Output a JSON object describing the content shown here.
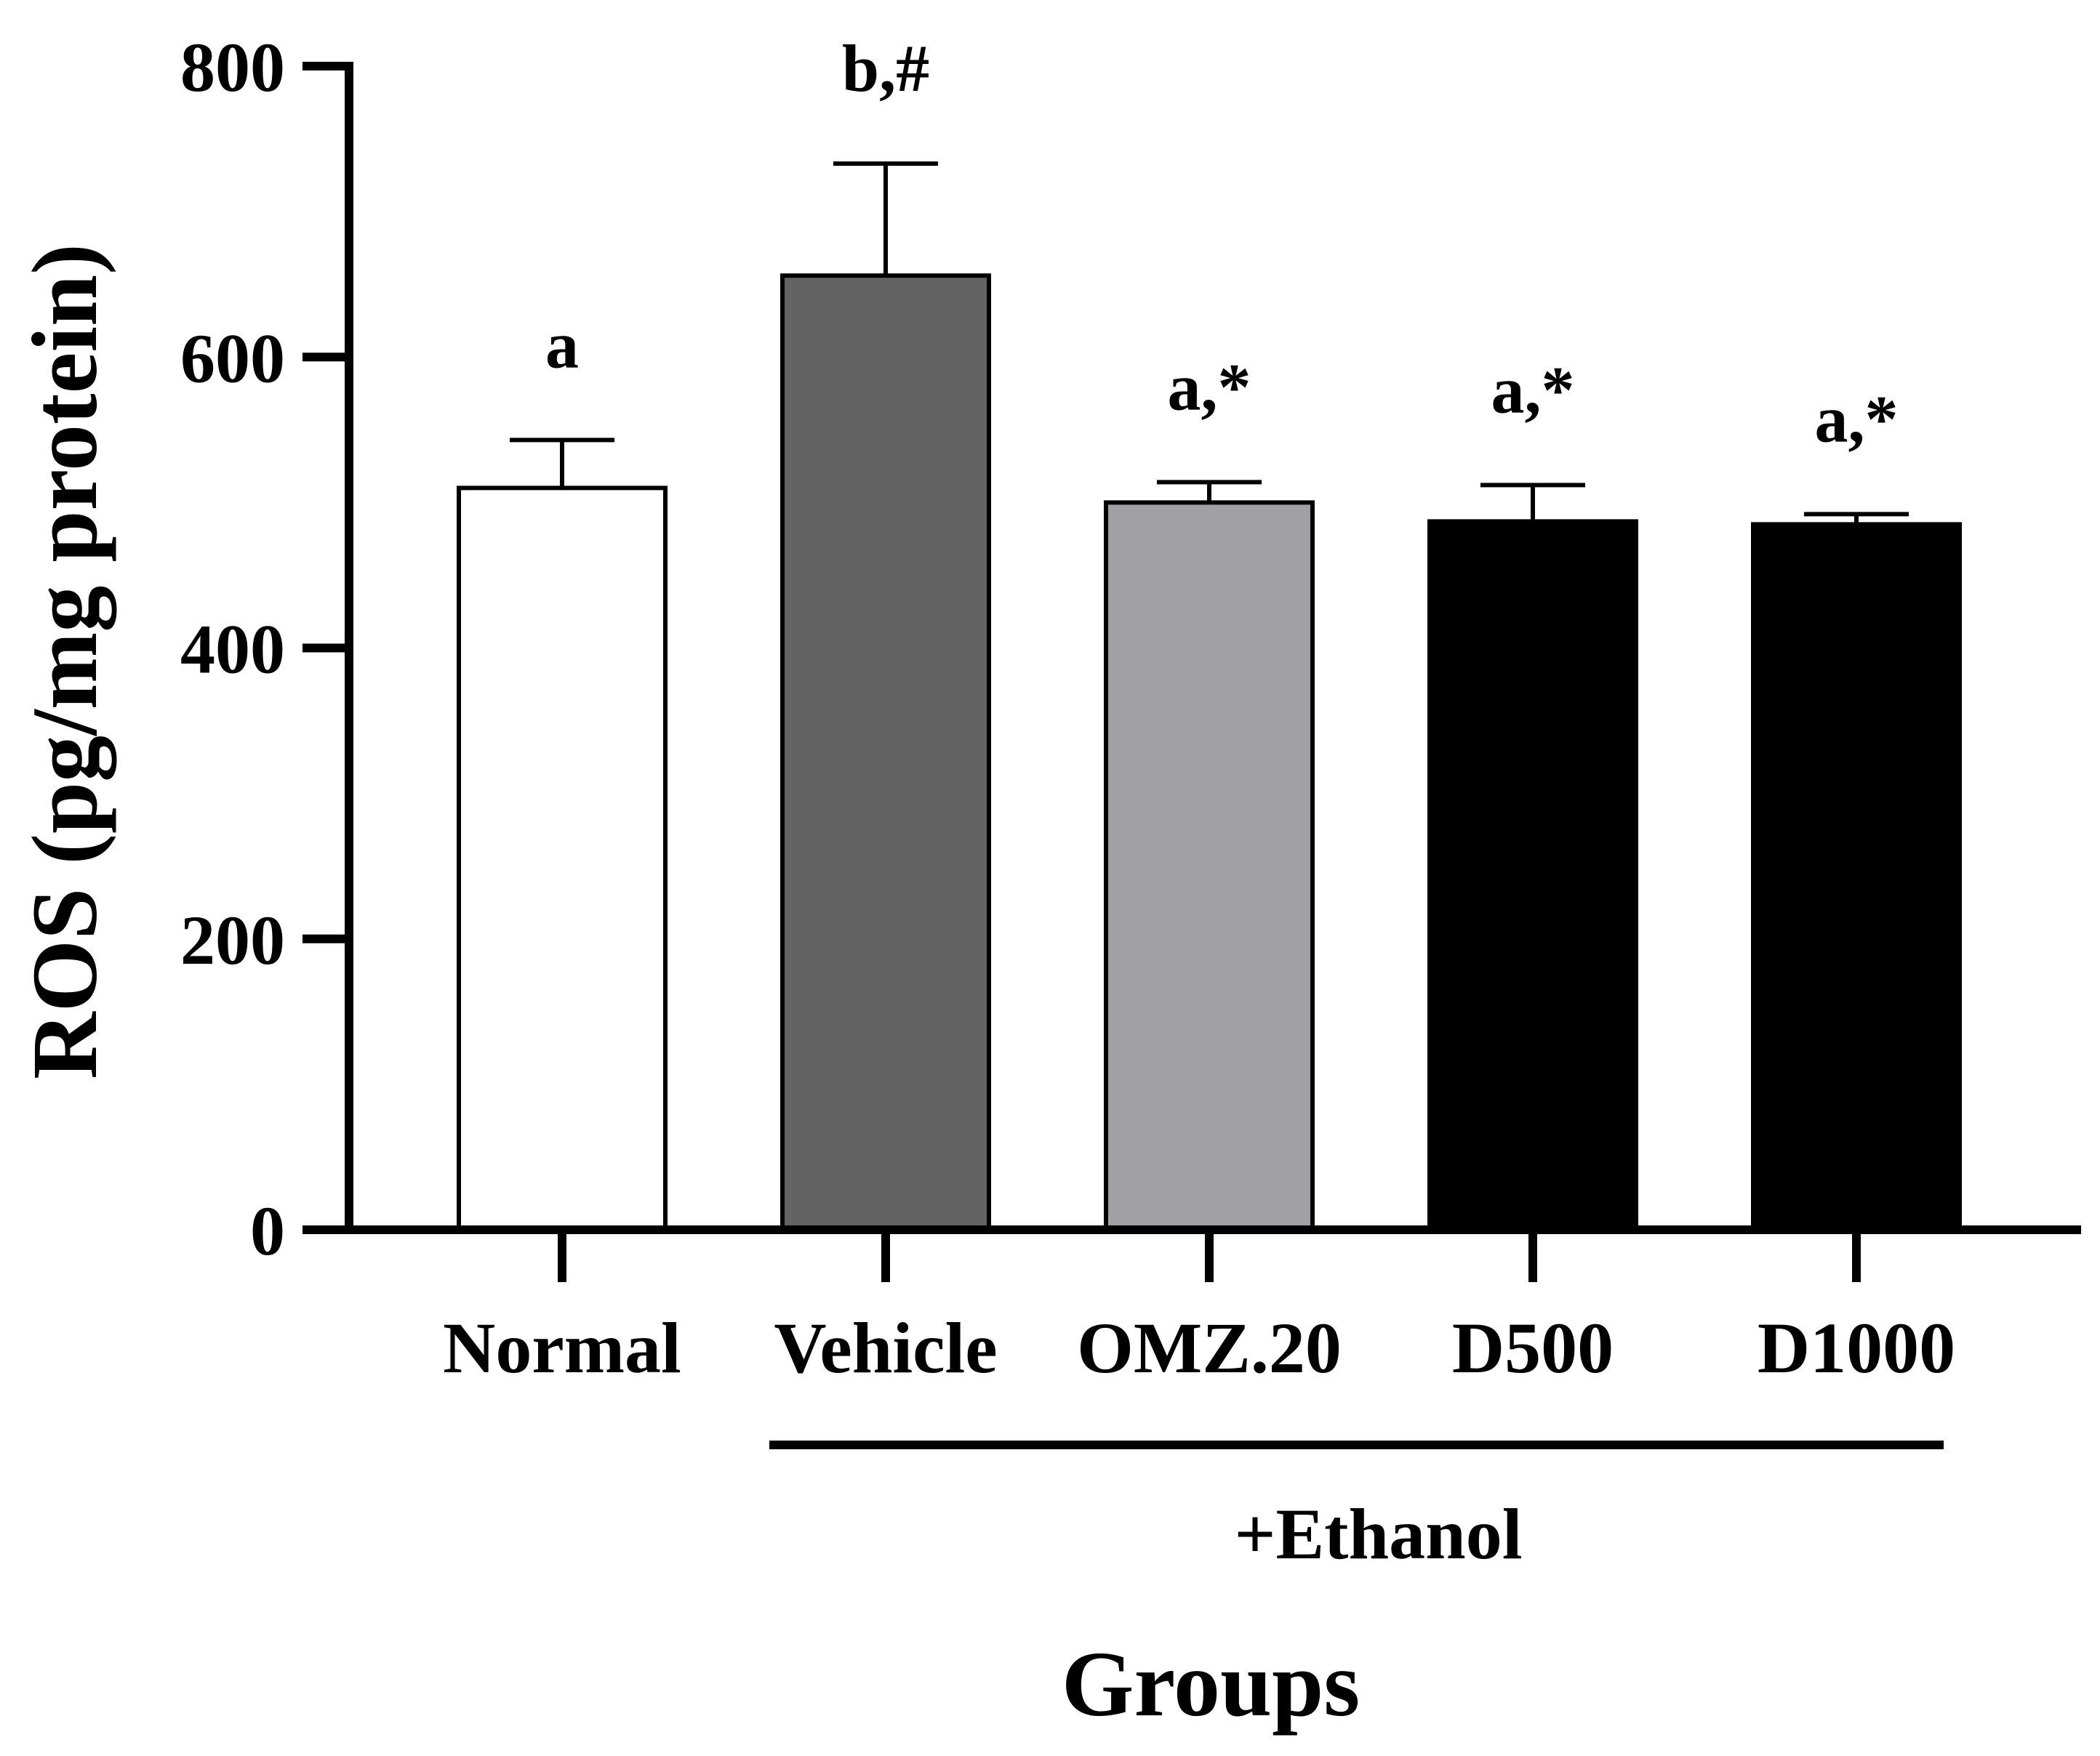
{
  "chart_data": {
    "type": "bar",
    "title": "",
    "xlabel": "Groups",
    "ylabel": "ROS (pg/mg protein)",
    "ylim": [
      0,
      800
    ],
    "yticks": [
      0,
      200,
      400,
      600,
      800
    ],
    "categories": [
      "Normal",
      "Vehicle",
      "OMZ.20",
      "D500",
      "D1000"
    ],
    "values": [
      510,
      656,
      500,
      487,
      485
    ],
    "errors": [
      33,
      77,
      14,
      25,
      7
    ],
    "annotations": [
      "a",
      "b,#",
      "a,*",
      "a,*",
      "a,*"
    ],
    "bar_colors": [
      "#ffffff",
      "#636363",
      "#a1a1a5",
      "#000000",
      "#000000"
    ],
    "group_bracket": {
      "label": "+Ethanol",
      "from_category": "Vehicle",
      "to_category": "D1000"
    }
  }
}
